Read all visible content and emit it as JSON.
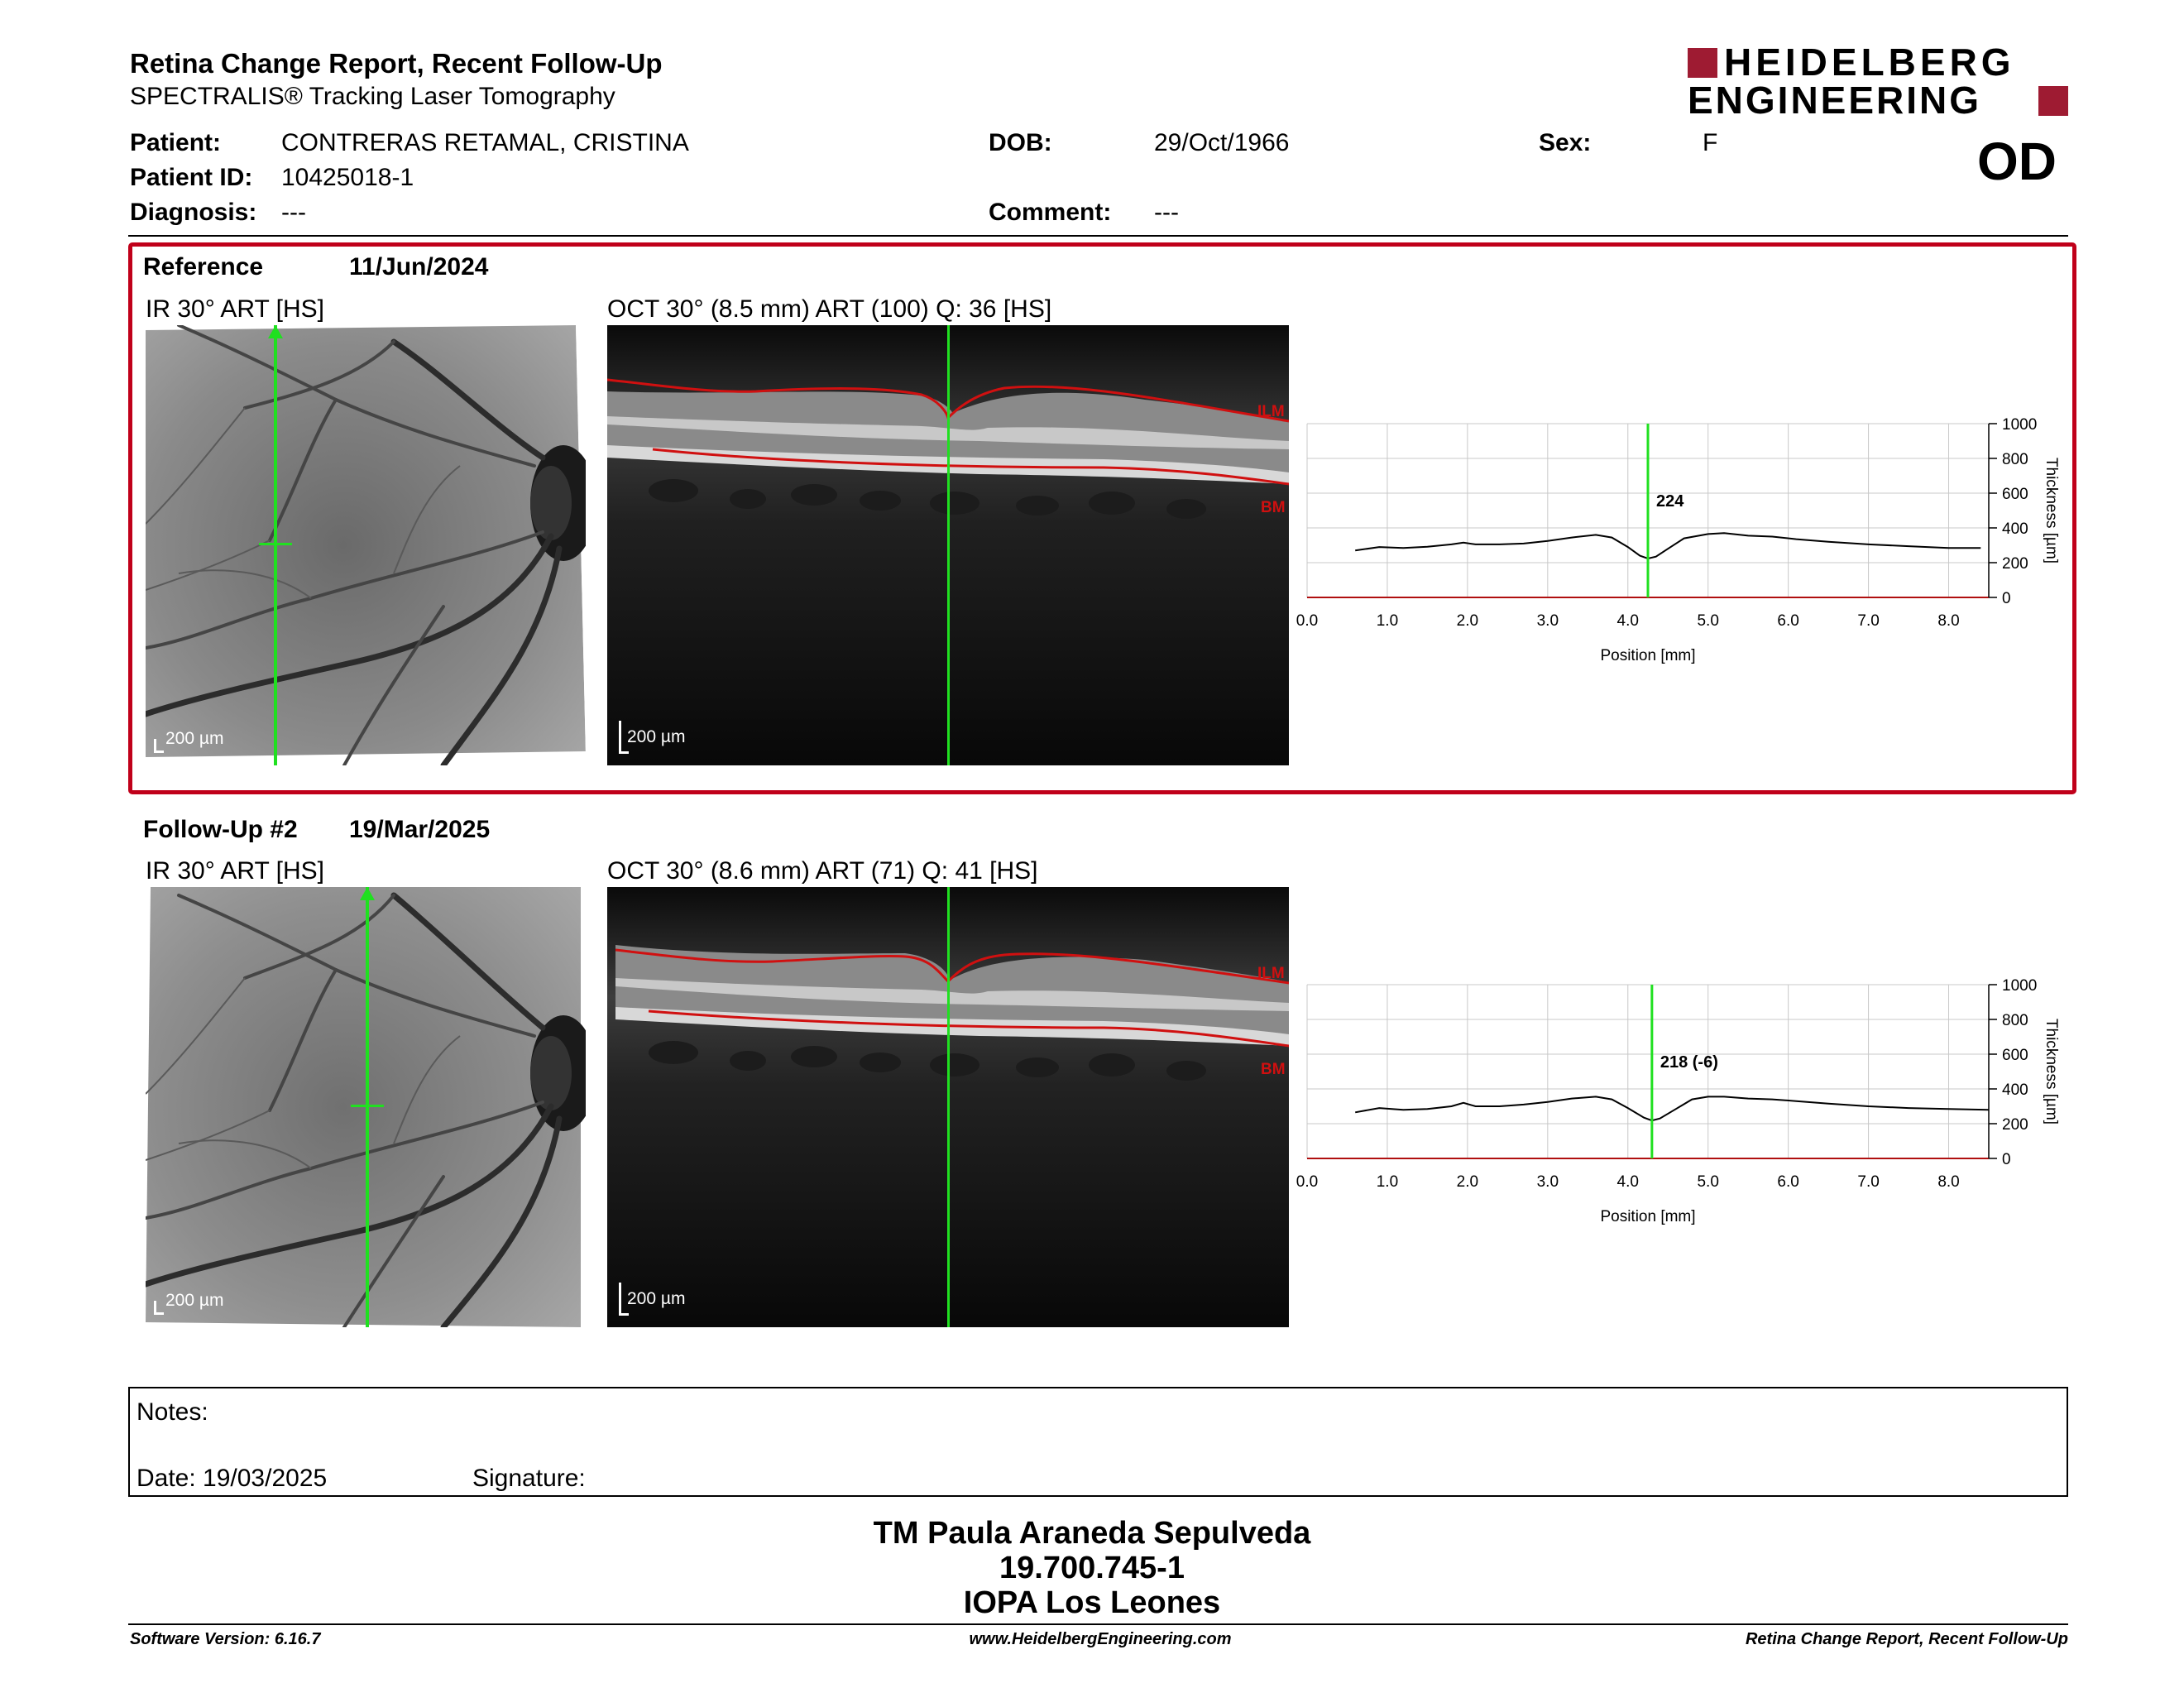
{
  "header": {
    "title": "Retina Change Report, Recent Follow-Up",
    "subtitle": "SPECTRALIS® Tracking Laser Tomography",
    "brand_line1": "HEIDELBERG",
    "brand_line2": "ENGINEERING",
    "eye": "OD"
  },
  "patient": {
    "patient_label": "Patient:",
    "patient_value": "CONTRERAS RETAMAL, CRISTINA",
    "id_label": "Patient ID:",
    "id_value": "10425018-1",
    "diagnosis_label": "Diagnosis:",
    "diagnosis_value": "---",
    "dob_label": "DOB:",
    "dob_value": "29/Oct/1966",
    "comment_label": "Comment:",
    "comment_value": "---",
    "sex_label": "Sex:",
    "sex_value": "F"
  },
  "exams": [
    {
      "label": "Reference",
      "date": "11/Jun/2024",
      "ir_caption": "IR 30° ART [HS]",
      "oct_caption": "OCT 30° (8.5 mm) ART (100) Q: 36 [HS]",
      "scale_ir": "200 µm",
      "scale_oct": "200 µm",
      "ilm_label": "ILM",
      "bm_label": "BM"
    },
    {
      "label": "Follow-Up #2",
      "date": "19/Mar/2025",
      "ir_caption": "IR 30° ART [HS]",
      "oct_caption": "OCT 30° (8.6 mm) ART (71) Q: 41 [HS]",
      "scale_ir": "200 µm",
      "scale_oct": "200 µm",
      "ilm_label": "ILM",
      "bm_label": "BM"
    }
  ],
  "chart_data": [
    {
      "type": "line",
      "x": [
        0.6,
        0.9,
        1.2,
        1.5,
        1.8,
        1.95,
        2.1,
        2.4,
        2.7,
        3.0,
        3.3,
        3.6,
        3.8,
        4.0,
        4.15,
        4.25,
        4.35,
        4.5,
        4.7,
        5.0,
        5.2,
        5.5,
        5.8,
        6.1,
        6.5,
        7.0,
        7.5,
        8.0,
        8.4
      ],
      "values": [
        270,
        290,
        285,
        292,
        305,
        315,
        305,
        305,
        310,
        325,
        345,
        360,
        345,
        290,
        240,
        224,
        235,
        280,
        340,
        365,
        370,
        355,
        350,
        335,
        320,
        305,
        295,
        285,
        285
      ],
      "marker_x": 4.25,
      "marker_label": "224",
      "xlabel": "Position [mm]",
      "ylabel": "Thickness [µm]",
      "xlim": [
        0.0,
        8.5
      ],
      "ylim": [
        0,
        1000
      ],
      "xticks": [
        "0.0",
        "1.0",
        "2.0",
        "3.0",
        "4.0",
        "5.0",
        "6.0",
        "7.0",
        "8.0"
      ],
      "yticks": [
        "0",
        "200",
        "400",
        "600",
        "800",
        "1000"
      ],
      "y_axis_side": "right",
      "grid": true
    },
    {
      "type": "line",
      "x": [
        0.6,
        0.9,
        1.2,
        1.5,
        1.8,
        1.95,
        2.1,
        2.4,
        2.7,
        3.0,
        3.3,
        3.6,
        3.8,
        4.0,
        4.2,
        4.3,
        4.4,
        4.6,
        4.8,
        5.0,
        5.2,
        5.5,
        5.8,
        6.1,
        6.5,
        7.0,
        7.5,
        8.0,
        8.5
      ],
      "values": [
        265,
        290,
        280,
        285,
        300,
        320,
        300,
        300,
        310,
        325,
        345,
        355,
        340,
        290,
        235,
        218,
        230,
        285,
        340,
        355,
        355,
        345,
        340,
        330,
        315,
        300,
        290,
        285,
        280
      ],
      "marker_x": 4.3,
      "marker_label": "218 (-6)",
      "xlabel": "Position [mm]",
      "ylabel": "Thickness [µm]",
      "xlim": [
        0.0,
        8.5
      ],
      "ylim": [
        0,
        1000
      ],
      "xticks": [
        "0.0",
        "1.0",
        "2.0",
        "3.0",
        "4.0",
        "5.0",
        "6.0",
        "7.0",
        "8.0"
      ],
      "yticks": [
        "0",
        "200",
        "400",
        "600",
        "800",
        "1000"
      ],
      "y_axis_side": "right",
      "grid": true
    }
  ],
  "notes": {
    "notes_label": "Notes:",
    "date_label": "Date: 19/03/2025",
    "signature_label": "Signature:"
  },
  "operator": {
    "name": "TM Paula Araneda Sepulveda",
    "id": "19.700.745-1",
    "place": "IOPA Los Leones"
  },
  "footer": {
    "software": "Software Version: 6.16.7",
    "website": "www.HeidelbergEngineering.com",
    "report": "Retina Change Report, Recent Follow-Up"
  },
  "colors": {
    "brand_red": "#9e1b32",
    "panel_border": "#c0001a",
    "scan_line": "#20e020",
    "segmentation": "#d01010"
  }
}
